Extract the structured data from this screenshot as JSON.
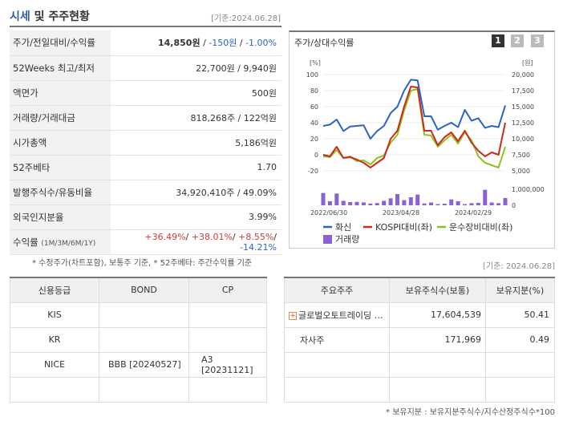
{
  "header": {
    "title_accent": "시세",
    "title_rest": " 및 주주현황",
    "date": "[기준:2024.06.28]"
  },
  "info_rows": [
    {
      "label": "주가/전일대비/수익률"
    },
    {
      "label": "52Weeks 최고/최저",
      "value": "22,700원 / 9,940원"
    },
    {
      "label": "액면가",
      "value": "500원"
    },
    {
      "label": "거래량/거래대금",
      "value": "818,268주 / 122억원"
    },
    {
      "label": "시가총액",
      "value": "5,186억원"
    },
    {
      "label": "52주베타",
      "value": "1.70"
    },
    {
      "label": "발행주식수/유동비율",
      "value": "34,920,410주 / 49.09%"
    },
    {
      "label": "외국인지분율",
      "value": "3.99%"
    },
    {
      "label": "수익률",
      "label_small": "(1M/3M/6M/1Y)"
    }
  ],
  "price": {
    "price": "14,850원",
    "sep1": " / ",
    "change": "-150원",
    "sep2": " / ",
    "rate": "-1.00%"
  },
  "returns": {
    "r1": "+36.49%",
    "r2": "+38.01%",
    "r3": "+8.55%",
    "r4": "-14.21%",
    "sep": "/ "
  },
  "note1": "* 수정주가(차트포함), 보통주 기준, * 52주베타: 주간수익률 기준",
  "chart_title": "주가/상대수익률",
  "chart_pages": [
    "1",
    "2",
    "3"
  ],
  "chart_data": {
    "type": "line",
    "x_ticks": [
      "2022/06/30",
      "2023/04/28",
      "2024/02/29"
    ],
    "left_axis": {
      "label": "[%]",
      "ticks": [
        "100",
        "80",
        "60",
        "40",
        "20",
        "0",
        "-20"
      ],
      "ylim": [
        -20,
        100
      ]
    },
    "right_axis": {
      "label": "[원]",
      "ticks": [
        "20,000",
        "17,500",
        "15,000",
        "12,500",
        "10,000",
        "7,500",
        "5,000"
      ],
      "ylim": [
        5000,
        20000
      ]
    },
    "volume_axis": {
      "ticks": [
        "1,000,000",
        "0"
      ],
      "ylim": [
        0,
        1500000
      ]
    },
    "series": [
      {
        "name": "화신",
        "color": "#2a64c8",
        "axis": "right",
        "values": [
          12000,
          12200,
          13000,
          11200,
          11900,
          12000,
          12100,
          10000,
          11200,
          12000,
          14000,
          15000,
          17500,
          19200,
          19100,
          13500,
          13500,
          11400,
          12000,
          12500,
          11800,
          14500,
          12800,
          13200,
          11700,
          12000,
          11800,
          15200
        ]
      },
      {
        "name": "KOSPI대비(좌)",
        "color": "#cc2a1e",
        "axis": "left",
        "values": [
          0,
          -2,
          10,
          -4,
          -3,
          -6,
          -10,
          -16,
          -10,
          -4,
          20,
          30,
          60,
          85,
          84,
          30,
          30,
          12,
          22,
          28,
          17,
          30,
          15,
          5,
          -2,
          3,
          0,
          40
        ]
      },
      {
        "name": "운수장비대비(좌)",
        "color": "#8dc21f",
        "axis": "left",
        "values": [
          -2,
          -3,
          6,
          -4,
          -2,
          -8,
          -7,
          -12,
          -4,
          -1,
          15,
          25,
          55,
          80,
          82,
          25,
          24,
          10,
          18,
          25,
          14,
          28,
          18,
          -2,
          -10,
          -13,
          -16,
          10
        ]
      },
      {
        "name": "거래량",
        "color": "#8c61d3",
        "axis": "volume",
        "values": [
          1150000,
          380000,
          1100000,
          420000,
          300000,
          320000,
          270000,
          160000,
          210000,
          420000,
          650000,
          1050000,
          480000,
          750000,
          1000000,
          170000,
          260000,
          110000,
          150000,
          550000,
          380000,
          110000,
          200000,
          230000,
          1450000,
          260000,
          200000,
          680000
        ]
      }
    ]
  },
  "date2": "[기준: 2024.06.28]",
  "credit": {
    "headers": [
      "신용등급",
      "BOND",
      "CP"
    ],
    "rows": [
      [
        "KIS",
        "",
        ""
      ],
      [
        "KR",
        "",
        ""
      ],
      [
        "NICE",
        "BBB [20240527]",
        "A3 [20231121]"
      ],
      [
        "",
        "",
        ""
      ]
    ]
  },
  "holders": {
    "headers": [
      "주요주주",
      "보유주식수(보통)",
      "보유지분(%)"
    ],
    "rows": [
      [
        "글로벌오토트레이딩 …",
        "17,604,539",
        "50.41"
      ],
      [
        "자사주",
        "171,969",
        "0.49"
      ],
      [
        "",
        "",
        ""
      ],
      [
        "",
        "",
        ""
      ]
    ]
  },
  "note2": "* 보유지분 : 보유지분주식수/지수산정주식수*100"
}
